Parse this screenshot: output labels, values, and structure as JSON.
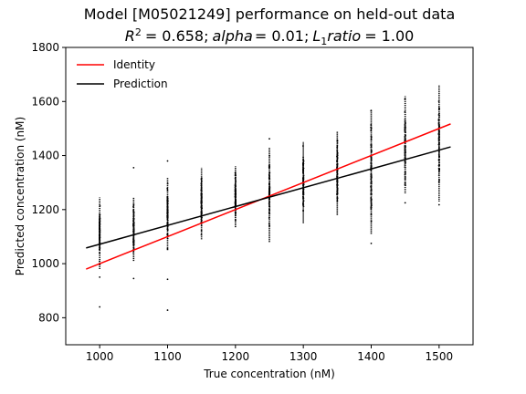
{
  "chart_data": {
    "type": "scatter",
    "title": "Model [M05021249] performance on held-out data",
    "subtitle": {
      "r2_value": "= 0.658;",
      "alpha_word": "alpha",
      "alpha_value": "= 0.01;",
      "l1_base": "L",
      "l1_sub": "1",
      "l1_word": "ratio",
      "l1_value": "= 1.00"
    },
    "xlabel": "True concentration (nM)",
    "ylabel": "Predicted concentration (nM)",
    "xlim": [
      950,
      1550
    ],
    "ylim": [
      700,
      1800
    ],
    "xticks": [
      "1000",
      "1100",
      "1200",
      "1300",
      "1400",
      "1500"
    ],
    "yticks": [
      "800",
      "1000",
      "1200",
      "1400",
      "1600",
      "1800"
    ],
    "legend_position": "top-left",
    "grid": false,
    "series": [
      {
        "name": "Identity",
        "kind": "line",
        "color": "#ff0000",
        "x": [
          980,
          1517
        ],
        "y": [
          980,
          1517
        ]
      },
      {
        "name": "Prediction",
        "kind": "line",
        "color": "#000000",
        "x": [
          980,
          1517
        ],
        "y": [
          1058,
          1432
        ]
      },
      {
        "name": "",
        "kind": "scatter",
        "color": "#000000",
        "x_levels": [
          1000,
          1050,
          1100,
          1150,
          1200,
          1250,
          1300,
          1350,
          1400,
          1450,
          1500
        ],
        "y_ranges": [
          [
            980,
            1245
          ],
          [
            1010,
            1245
          ],
          [
            1050,
            1320
          ],
          [
            1090,
            1355
          ],
          [
            1135,
            1360
          ],
          [
            1080,
            1430
          ],
          [
            1150,
            1450
          ],
          [
            1180,
            1490
          ],
          [
            1110,
            1570
          ],
          [
            1260,
            1620
          ],
          [
            1230,
            1660
          ]
        ],
        "outliers": [
          [
            1000,
            840
          ],
          [
            1000,
            950
          ],
          [
            1050,
            945
          ],
          [
            1050,
            1355
          ],
          [
            1100,
            828
          ],
          [
            1100,
            942
          ],
          [
            1100,
            1380
          ],
          [
            1250,
            1462
          ],
          [
            1400,
            1075
          ],
          [
            1450,
            1225
          ],
          [
            1500,
            1218
          ]
        ]
      }
    ]
  }
}
